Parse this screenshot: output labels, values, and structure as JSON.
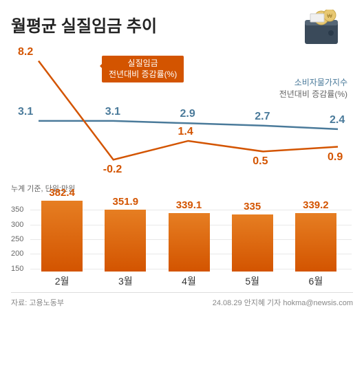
{
  "title": "월평균 실질임금 추이",
  "line_chart": {
    "series_a": {
      "name_l1": "실질임금",
      "name_l2": "전년대비 증감률(%)",
      "color": "#d35400",
      "values": [
        8.2,
        -0.2,
        1.4,
        0.5,
        0.9
      ]
    },
    "series_b": {
      "name_l1": "소비자물가지수",
      "name_l2": "전년대비 증감률(%)",
      "color": "#4a7a9a",
      "values": [
        3.1,
        3.1,
        2.9,
        2.7,
        2.4
      ]
    },
    "y_min": -1,
    "y_max": 9,
    "categories": [
      "2월",
      "3월",
      "4월",
      "5월",
      "6월"
    ]
  },
  "bar_chart": {
    "subcaption": "누계 기준, 단위:만원",
    "values": [
      382.4,
      351.9,
      339.1,
      335,
      339.2
    ],
    "bar_color_top": "#e67e22",
    "bar_color_bottom": "#d35400",
    "y_ticks": [
      150,
      200,
      250,
      300,
      350
    ],
    "y_max": 400,
    "y_min": 140
  },
  "footer": {
    "source": "자료: 고용노동부",
    "credit": "24.08.29 안지혜 기자 hokma@newsis.com"
  }
}
